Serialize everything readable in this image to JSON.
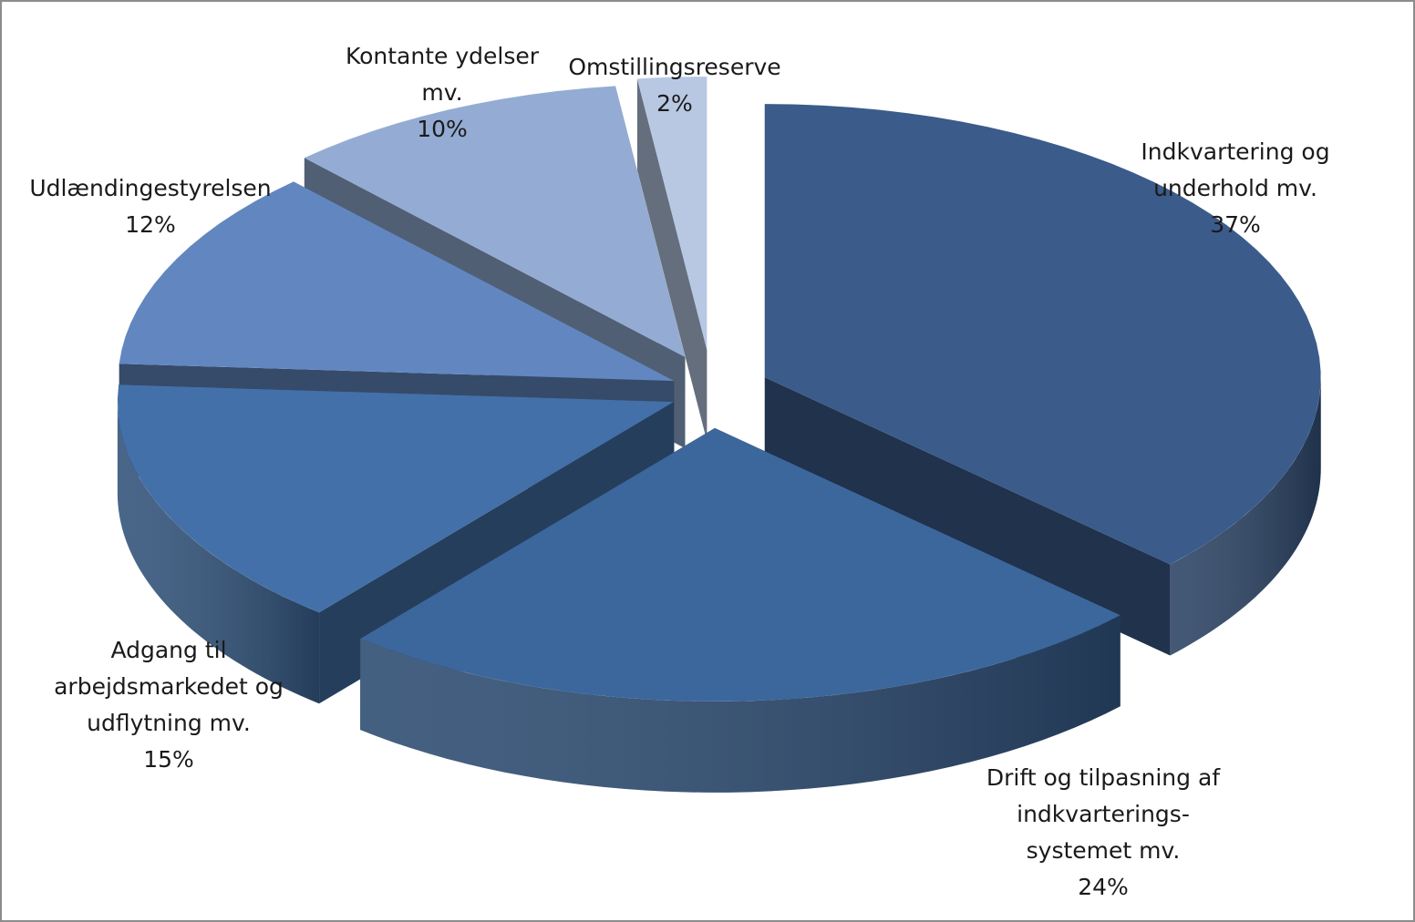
{
  "chart_data": {
    "type": "pie",
    "variant": "3d-exploded",
    "title": "",
    "legend": "none",
    "slices": [
      {
        "label_lines": [
          "Indkvartering og",
          "underhold mv."
        ],
        "value": 37,
        "pct_label": "37%",
        "color": "#3b5b8a"
      },
      {
        "label_lines": [
          "Drift og tilpasning af",
          "indkvarterings-",
          "systemet  mv."
        ],
        "value": 24,
        "pct_label": "24%",
        "color": "#3c679c"
      },
      {
        "label_lines": [
          "Adgang til",
          "arbejdsmarkedet og",
          "udflytning mv."
        ],
        "value": 15,
        "pct_label": "15%",
        "color": "#4370a8"
      },
      {
        "label_lines": [
          "Udlændingestyrelsen"
        ],
        "value": 12,
        "pct_label": "12%",
        "color": "#6287c0"
      },
      {
        "label_lines": [
          "Kontante ydelser",
          "mv."
        ],
        "value": 10,
        "pct_label": "10%",
        "color": "#94acd3"
      },
      {
        "label_lines": [
          "Omstillingsreserve"
        ],
        "value": 2,
        "pct_label": "2%",
        "color": "#b8c8e3"
      }
    ]
  }
}
